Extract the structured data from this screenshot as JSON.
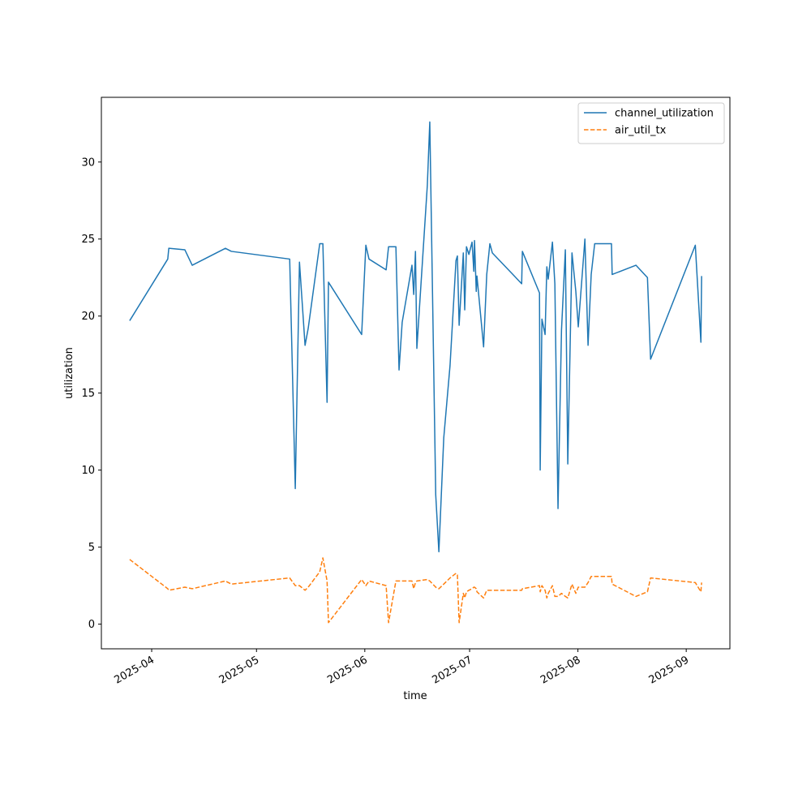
{
  "chart_data": {
    "type": "line",
    "xlabel": "time",
    "ylabel": "utilization",
    "x": [
      20172.7,
      20183.6,
      20183.9,
      20188.5,
      20190.6,
      20200.1,
      20201.8,
      20218.5,
      20220.1,
      20221.3,
      20222.9,
      20223.8,
      20227.1,
      20228.0,
      20229.2,
      20229.6,
      20239.1,
      20240.3,
      20241.2,
      20246.1,
      20246.8,
      20248.9,
      20249.8,
      20250.7,
      20253.5,
      20254.0,
      20254.5,
      20254.9,
      20257.9,
      20258.6,
      20260.3,
      20261.2,
      20262.6,
      20264.4,
      20266.1,
      20266.5,
      20267.0,
      20268.2,
      20268.6,
      20269.1,
      20269.8,
      20270.7,
      20271.2,
      20271.4,
      20271.9,
      20272.1,
      20274.0,
      20274.9,
      20275.8,
      20276.5,
      20284.9,
      20285.1,
      20290.0,
      20290.2,
      20290.7,
      20291.6,
      20292.1,
      20292.5,
      20293.7,
      20294.4,
      20295.3,
      20296.3,
      20297.4,
      20298.1,
      20299.3,
      20300.4,
      20301.1,
      20303.0,
      20303.9,
      20304.8,
      20305.8,
      20310.6,
      20310.8,
      20317.6,
      20320.9,
      20321.8,
      20334.6,
      20336.2,
      20336.4
    ],
    "series": [
      {
        "name": "channel_utilization",
        "color": "#1f77b4",
        "linestyle": "solid",
        "values": [
          19.7,
          23.7,
          24.4,
          24.3,
          23.3,
          24.4,
          24.2,
          23.7,
          8.8,
          23.5,
          18.1,
          19.2,
          24.7,
          24.7,
          14.4,
          22.2,
          18.8,
          24.6,
          23.7,
          23.0,
          24.5,
          24.5,
          16.5,
          19.6,
          23.3,
          21.4,
          24.2,
          17.9,
          28.5,
          32.6,
          8.4,
          4.7,
          12.1,
          16.8,
          23.6,
          23.9,
          19.4,
          24.1,
          20.4,
          24.5,
          24.0,
          24.8,
          22.9,
          24.9,
          21.6,
          22.6,
          18.0,
          22.7,
          24.7,
          24.1,
          22.1,
          24.2,
          21.5,
          10.0,
          19.8,
          18.8,
          23.2,
          22.4,
          24.8,
          22.1,
          7.5,
          19.1,
          24.3,
          10.4,
          24.1,
          21.6,
          19.3,
          25.0,
          18.1,
          22.7,
          24.7,
          24.7,
          22.7,
          23.3,
          22.5,
          17.2,
          24.6,
          18.3,
          22.6
        ]
      },
      {
        "name": "air_util_tx",
        "color": "#ff7f0e",
        "linestyle": "dashed",
        "values": [
          4.2,
          2.3,
          2.2,
          2.4,
          2.3,
          2.8,
          2.6,
          3.0,
          2.5,
          2.5,
          2.2,
          2.4,
          3.4,
          4.3,
          2.8,
          0.1,
          2.9,
          2.5,
          2.8,
          2.5,
          0.1,
          2.8,
          2.8,
          2.8,
          2.8,
          2.3,
          2.7,
          2.8,
          2.9,
          2.8,
          2.4,
          2.3,
          2.6,
          3.0,
          3.3,
          3.2,
          0.1,
          2.0,
          1.7,
          2.1,
          2.2,
          2.3,
          2.4,
          2.4,
          2.3,
          2.1,
          1.7,
          2.2,
          2.2,
          2.2,
          2.2,
          2.3,
          2.5,
          2.1,
          2.5,
          2.2,
          1.7,
          2.0,
          2.5,
          1.8,
          1.8,
          2.0,
          1.8,
          1.7,
          2.6,
          2.0,
          2.4,
          2.4,
          2.7,
          3.1,
          3.1,
          3.1,
          2.6,
          1.8,
          2.1,
          3.0,
          2.7,
          2.1,
          2.7
        ]
      }
    ],
    "xlim": [
      20164.6,
      20344.5
    ],
    "xticks": [
      {
        "value": 20179,
        "label": "2025-04"
      },
      {
        "value": 20209,
        "label": "2025-05"
      },
      {
        "value": 20240,
        "label": "2025-06"
      },
      {
        "value": 20270,
        "label": "2025-07"
      },
      {
        "value": 20301,
        "label": "2025-08"
      },
      {
        "value": 20332,
        "label": "2025-09"
      }
    ],
    "ylim": [
      -1.6,
      34.2
    ],
    "yticks": [
      0,
      5,
      10,
      15,
      20,
      25,
      30
    ],
    "legend": "upper right"
  }
}
